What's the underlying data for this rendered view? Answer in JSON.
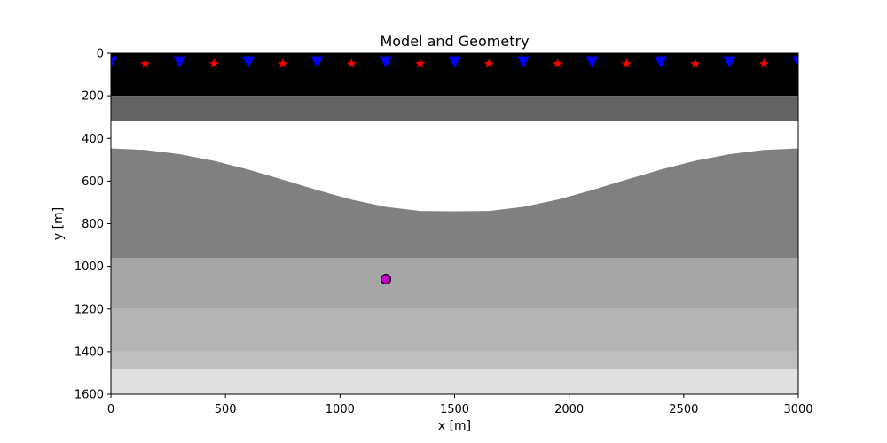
{
  "chart_data": {
    "type": "heatmap",
    "title": "Model and Geometry",
    "xlabel": "x [m]",
    "ylabel": "y [m]",
    "xlim": [
      0,
      3000
    ],
    "ylim": [
      1600,
      0
    ],
    "y_inverted": true,
    "grid": false,
    "legend": "none",
    "xticks": [
      0,
      500,
      1000,
      1500,
      2000,
      2500,
      3000
    ],
    "yticks": [
      0,
      200,
      400,
      600,
      800,
      1000,
      1200,
      1400,
      1600
    ],
    "layers": [
      {
        "top": 0,
        "bottom": 200,
        "color": "#000000"
      },
      {
        "top": 200,
        "bottom": 320,
        "color": "#636363"
      },
      {
        "top": 320,
        "bottom": 960,
        "color": "#ffffff"
      },
      {
        "top": 960,
        "bottom": 1200,
        "color": "#a6a6a6"
      },
      {
        "top": 1200,
        "bottom": 1400,
        "color": "#b4b4b4"
      },
      {
        "top": 1400,
        "bottom": 1480,
        "color": "#bfbfbf"
      },
      {
        "top": 1480,
        "bottom": 1600,
        "color": "#e0e0e0"
      }
    ],
    "curved_layer": {
      "color": "#808080",
      "bottom": 960,
      "top_profile": {
        "x": [
          0,
          150,
          300,
          450,
          600,
          750,
          900,
          1050,
          1200,
          1350,
          1500,
          1650,
          1800,
          1950,
          2100,
          2250,
          2400,
          2550,
          2700,
          2850,
          3000
        ],
        "y": [
          447,
          454,
          474,
          505,
          546,
          593,
          642,
          687,
          721,
          740,
          742,
          740,
          721,
          687,
          642,
          593,
          546,
          505,
          474,
          454,
          447
        ]
      }
    },
    "series": [
      {
        "marker": "triangle-down",
        "color": "#0000ff",
        "x": [
          0,
          300,
          600,
          900,
          1200,
          1500,
          1800,
          2100,
          2400,
          2700,
          3000
        ],
        "y": [
          40,
          40,
          40,
          40,
          40,
          40,
          40,
          40,
          40,
          40,
          40
        ]
      },
      {
        "marker": "star",
        "color": "#ff0000",
        "x": [
          150,
          450,
          750,
          1050,
          1350,
          1650,
          1950,
          2250,
          2550,
          2850
        ],
        "y": [
          50,
          50,
          50,
          50,
          50,
          50,
          50,
          50,
          50,
          50
        ]
      },
      {
        "marker": "circle",
        "color": "#bf00bf",
        "x": [
          1200
        ],
        "y": [
          1060
        ]
      }
    ]
  }
}
